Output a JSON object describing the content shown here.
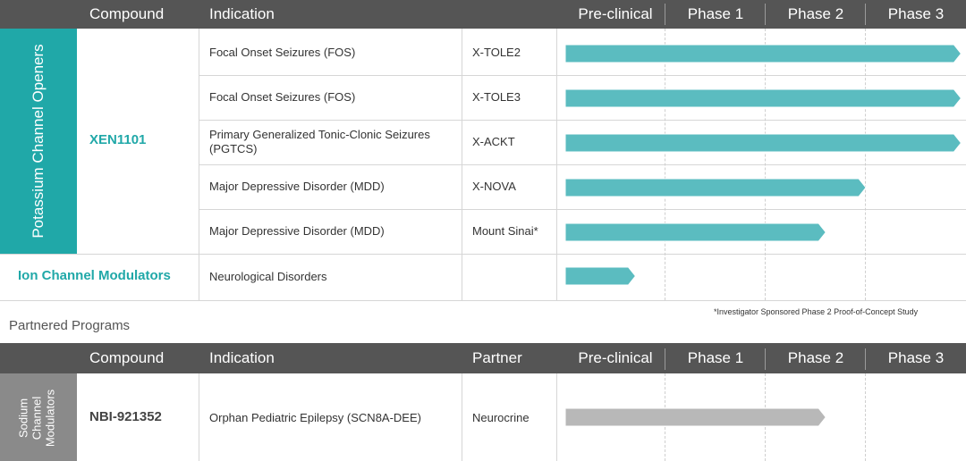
{
  "colors": {
    "teal": "#20a8a8",
    "bar_teal": "#5bbcc0",
    "header": "#555555",
    "gray_side": "#8a8a8a",
    "gray_bar": "#b8b8b8"
  },
  "top_table": {
    "headers": {
      "compound": "Compound",
      "indication": "Indication",
      "preclinical": "Pre-clinical",
      "phase1": "Phase 1",
      "phase2": "Phase 2",
      "phase3": "Phase 3"
    },
    "group_label": "Potassium Channel Openers",
    "compound": "XEN1101",
    "rows": [
      {
        "indication": "Focal Onset Seizures (FOS)",
        "trial": "X-TOLE2",
        "progress_phase": 3.95
      },
      {
        "indication": "Focal Onset Seizures (FOS)",
        "trial": "X-TOLE3",
        "progress_phase": 3.95
      },
      {
        "indication": "Primary Generalized Tonic-Clonic Seizures (PGTCS)",
        "trial": "X-ACKT",
        "progress_phase": 3.95
      },
      {
        "indication": "Major Depressive Disorder (MDD)",
        "trial": "X-NOVA",
        "progress_phase": 3.0
      },
      {
        "indication": "Major Depressive Disorder (MDD)",
        "trial": "Mount Sinai*",
        "progress_phase": 2.6
      }
    ],
    "ion_row": {
      "compound": "Ion Channel Modulators",
      "indication": "Neurological Disorders",
      "trial": "",
      "progress_phase": 0.7
    },
    "footnote": "*Investigator Sponsored Phase 2 Proof-of-Concept Study"
  },
  "partnered": {
    "section_title": "Partnered Programs",
    "headers": {
      "compound": "Compound",
      "indication": "Indication",
      "partner": "Partner",
      "preclinical": "Pre-clinical",
      "phase1": "Phase 1",
      "phase2": "Phase 2",
      "phase3": "Phase 3"
    },
    "group_label": [
      "Sodium",
      "Channel",
      "Modulators"
    ],
    "rows": [
      {
        "compound": "NBI-921352",
        "indication": "Orphan Pediatric Epilepsy (SCN8A-DEE)",
        "partner": "Neurocrine",
        "progress_phase": 2.6
      }
    ]
  }
}
